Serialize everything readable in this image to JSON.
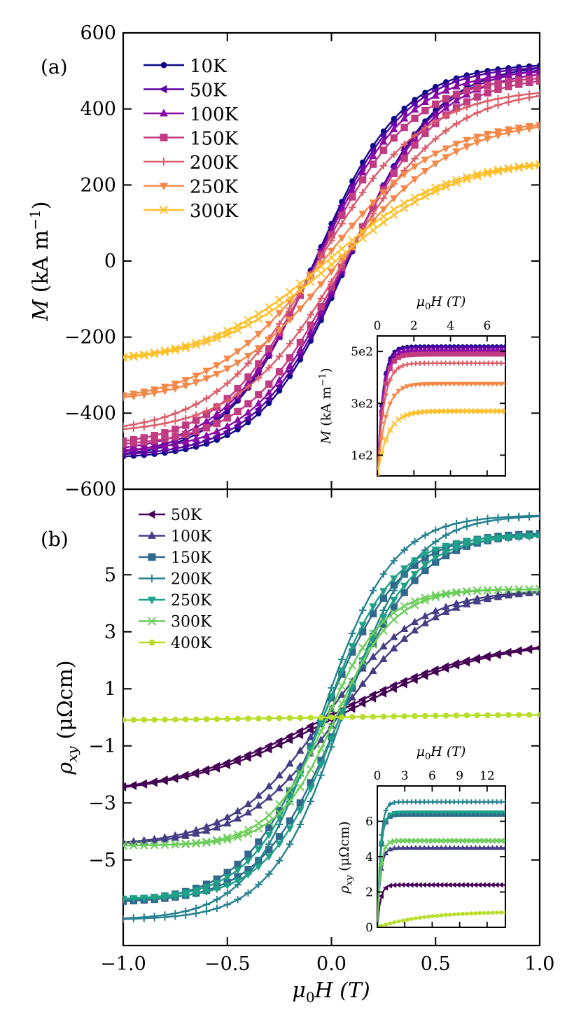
{
  "chart_data": [
    {
      "panel": "a",
      "type": "line",
      "panel_label": "(a)",
      "ylabel": "M (kA m⁻¹)",
      "ylabel_var": "M",
      "ylabel_unit": " (kA m",
      "ylabel_sup": "−1",
      "ylabel_close": ")",
      "xlim": [
        -1.0,
        1.0
      ],
      "ylim": [
        -600,
        600
      ],
      "yticks": [
        -600,
        -400,
        -200,
        0,
        200,
        400,
        600
      ],
      "ytick_labels": [
        "−600",
        "−400",
        "−200",
        "0",
        "200",
        "400",
        "600"
      ],
      "legend_location": "upper-left",
      "series": [
        {
          "name": "10K",
          "color": "#0d0887",
          "marker": "circle",
          "Ms": 520,
          "Hc": 0.08,
          "w": 0.42
        },
        {
          "name": "50K",
          "color": "#5b02a3",
          "marker": "triangle-left",
          "Ms": 515,
          "Hc": 0.075,
          "w": 0.43
        },
        {
          "name": "100K",
          "color": "#8b0aa5",
          "marker": "triangle-up",
          "Ms": 505,
          "Hc": 0.07,
          "w": 0.44
        },
        {
          "name": "150K",
          "color": "#c13b82",
          "marker": "square",
          "Ms": 490,
          "Hc": 0.065,
          "w": 0.46
        },
        {
          "name": "200K",
          "color": "#db5c68",
          "marker": "plus",
          "Ms": 455,
          "Hc": 0.06,
          "w": 0.5
        },
        {
          "name": "250K",
          "color": "#f48849",
          "marker": "triangle-down",
          "Ms": 375,
          "Hc": 0.04,
          "w": 0.55
        },
        {
          "name": "300K",
          "color": "#fec029",
          "marker": "x",
          "Ms": 270,
          "Hc": 0.02,
          "w": 0.58
        }
      ],
      "inset": {
        "xlabel": "μ0H (T)",
        "xlabel_var": "μ",
        "xlabel_sub": "0",
        "xlabel_rest": "H (T)",
        "ylabel": "M (kA m⁻¹)",
        "ylabel_var": "M",
        "ylabel_unit": " (kA m",
        "ylabel_sup": "−1",
        "ylabel_close": ")",
        "xlim": [
          0,
          7
        ],
        "ylim": [
          20,
          560
        ],
        "xticks": [
          0,
          2,
          4,
          6
        ],
        "xtick_labels": [
          "0",
          "2",
          "4",
          "6"
        ],
        "yticks": [
          100,
          300,
          500
        ],
        "ytick_labels": [
          "1e2",
          "3e2",
          "5e2"
        ]
      }
    },
    {
      "panel": "b",
      "type": "line",
      "panel_label": "(b)",
      "xlabel": "μ0H (T)",
      "xlabel_var": "μ",
      "xlabel_sub": "0",
      "xlabel_rest": "H (T)",
      "ylabel": "ρxy (μΩcm)",
      "ylabel_var": "ρ",
      "ylabel_sub": "xy",
      "ylabel_unit": "(μΩcm)",
      "xlim": [
        -1.0,
        1.0
      ],
      "ylim": [
        -8.0,
        8.0
      ],
      "xticks": [
        -1.0,
        -0.5,
        0.0,
        0.5,
        1.0
      ],
      "xtick_labels": [
        "−1.0",
        "−0.5",
        "0.0",
        "0.5",
        "1.0"
      ],
      "yticks": [
        -5,
        -3,
        -1,
        1,
        3,
        5
      ],
      "ytick_labels": [
        "−5",
        "−3",
        "−1",
        "1",
        "3",
        "5"
      ],
      "legend_location": "upper-left",
      "series": [
        {
          "name": "50K",
          "color": "#440154",
          "marker": "triangle-left",
          "Ms": 2.8,
          "Hc": 0.02,
          "w": 0.75
        },
        {
          "name": "100K",
          "color": "#433e85",
          "marker": "triangle-up",
          "Ms": 4.5,
          "Hc": 0.03,
          "w": 0.45
        },
        {
          "name": "150K",
          "color": "#31688e",
          "marker": "square",
          "Ms": 6.5,
          "Hc": 0.04,
          "w": 0.38
        },
        {
          "name": "200K",
          "color": "#26828e",
          "marker": "plus",
          "Ms": 7.1,
          "Hc": 0.05,
          "w": 0.34
        },
        {
          "name": "250K",
          "color": "#1fa088",
          "marker": "triangle-down",
          "Ms": 6.4,
          "Hc": 0.04,
          "w": 0.34
        },
        {
          "name": "300K",
          "color": "#6ccd5a",
          "marker": "x",
          "Ms": 4.5,
          "Hc": 0.02,
          "w": 0.28
        },
        {
          "name": "400K",
          "color": "#b8de29",
          "marker": "circle",
          "Ms": 0.12,
          "Hc": 0.0,
          "w": 1.0
        }
      ],
      "inset": {
        "xlabel": "μ0H (T)",
        "xlabel_var": "μ",
        "xlabel_sub": "0",
        "xlabel_rest": "H (T)",
        "ylabel": "ρxy (μΩcm)",
        "ylabel_var": "ρ",
        "ylabel_sub": "xy",
        "ylabel_unit": "(μΩcm)",
        "xlim": [
          0,
          14
        ],
        "ylim": [
          0,
          8
        ],
        "xticks": [
          0,
          3,
          6,
          9,
          12
        ],
        "xtick_labels": [
          "0",
          "3",
          "6",
          "9",
          "12"
        ],
        "yticks": [
          0,
          2,
          4,
          6
        ],
        "ytick_labels": [
          "0",
          "2",
          "4",
          "6"
        ],
        "series": [
          {
            "name": "50K",
            "color": "#440154",
            "sat": 2.4
          },
          {
            "name": "100K",
            "color": "#433e85",
            "sat": 4.5
          },
          {
            "name": "150K",
            "color": "#31688e",
            "sat": 6.4
          },
          {
            "name": "200K",
            "color": "#26828e",
            "sat": 7.1
          },
          {
            "name": "250K",
            "color": "#1fa088",
            "sat": 6.5
          },
          {
            "name": "300K",
            "color": "#6ccd5a",
            "sat": 4.9
          },
          {
            "name": "400K",
            "color": "#b8de29",
            "sat": 0.9
          }
        ]
      }
    }
  ],
  "shared_x": {
    "xlabel": "μ0H (T)",
    "xlabel_var": "μ",
    "xlabel_sub": "0",
    "xlabel_rest": "H (T)",
    "xticks": [
      -1.0,
      -0.5,
      0.0,
      0.5,
      1.0
    ],
    "xtick_labels": [
      "−1.0",
      "−0.5",
      "0.0",
      "0.5",
      "1.0"
    ]
  }
}
